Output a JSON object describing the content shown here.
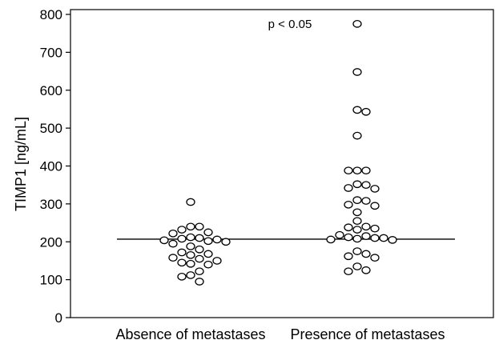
{
  "chart_data": {
    "type": "scatter",
    "ylabel": "TIMP1 [ng/mL]",
    "xlabel": "",
    "ylim": [
      0,
      820
    ],
    "yticks": [
      0,
      100,
      200,
      300,
      400,
      500,
      600,
      700,
      800
    ],
    "categories": [
      "Absence of metastases",
      "Presence of metastases"
    ],
    "annotation": "p < 0.05",
    "reference_line": 207,
    "grid": false,
    "series": [
      {
        "category": "Absence of metastases",
        "values": [
          305,
          240,
          240,
          232,
          225,
          222,
          212,
          210,
          208,
          206,
          204,
          202,
          200,
          195,
          188,
          180,
          172,
          168,
          165,
          158,
          155,
          150,
          145,
          142,
          140,
          122,
          112,
          108,
          95
        ]
      },
      {
        "category": "Presence of metastases",
        "values": [
          775,
          648,
          548,
          543,
          480,
          388,
          388,
          388,
          352,
          350,
          342,
          340,
          310,
          308,
          298,
          295,
          278,
          255,
          240,
          238,
          235,
          232,
          218,
          215,
          212,
          210,
          210,
          208,
          206,
          205,
          175,
          168,
          162,
          158,
          135,
          125,
          122
        ]
      }
    ]
  }
}
